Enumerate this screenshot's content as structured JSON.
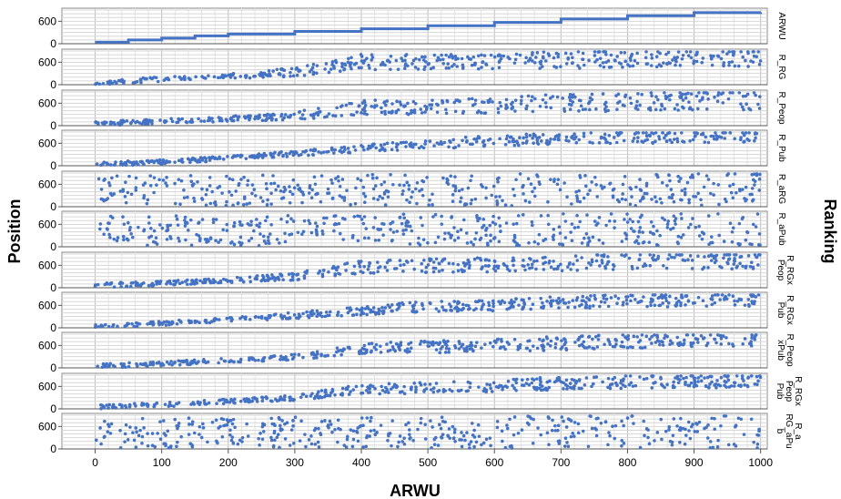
{
  "chart_data": {
    "type": "scatter",
    "title": "",
    "xlabel": "ARWU",
    "ylabel_left": "Position",
    "ylabel_right": "Ranking",
    "xlim": [
      -50,
      1010
    ],
    "ylim": [
      0,
      950
    ],
    "x_ticks": [
      0,
      100,
      200,
      300,
      400,
      500,
      600,
      700,
      800,
      900,
      1000
    ],
    "y_ticks": [
      0,
      600
    ],
    "grid": true,
    "point_color": "#4472c4",
    "panels": [
      {
        "name": "ARWU",
        "kind": "step",
        "steps": [
          [
            0,
            40
          ],
          [
            50,
            100
          ],
          [
            100,
            150
          ],
          [
            150,
            210
          ],
          [
            200,
            260
          ],
          [
            300,
            330
          ],
          [
            400,
            400
          ],
          [
            500,
            480
          ],
          [
            600,
            570
          ],
          [
            700,
            660
          ],
          [
            800,
            750
          ],
          [
            900,
            830
          ],
          [
            1000,
            840
          ]
        ]
      },
      {
        "name": "R_RG",
        "kind": "scatter",
        "profile": [
          [
            0,
            50
          ],
          [
            100,
            150
          ],
          [
            200,
            230
          ],
          [
            300,
            330
          ],
          [
            400,
            600
          ],
          [
            500,
            600
          ],
          [
            600,
            620
          ],
          [
            700,
            660
          ],
          [
            800,
            700
          ],
          [
            900,
            730
          ],
          [
            1000,
            730
          ]
        ],
        "spread": 0.35,
        "seed": 11,
        "n": 430
      },
      {
        "name": "R_Peop",
        "kind": "scatter",
        "profile": [
          [
            0,
            50
          ],
          [
            100,
            120
          ],
          [
            200,
            180
          ],
          [
            300,
            260
          ],
          [
            400,
            500
          ],
          [
            500,
            480
          ],
          [
            600,
            560
          ],
          [
            700,
            600
          ],
          [
            800,
            640
          ],
          [
            900,
            700
          ],
          [
            1000,
            700
          ]
        ],
        "spread": 0.4,
        "seed": 23,
        "n": 430
      },
      {
        "name": "R_Pub",
        "kind": "scatter",
        "profile": [
          [
            0,
            50
          ],
          [
            100,
            100
          ],
          [
            200,
            200
          ],
          [
            300,
            330
          ],
          [
            400,
            460
          ],
          [
            500,
            560
          ],
          [
            600,
            680
          ],
          [
            700,
            720
          ],
          [
            800,
            760
          ],
          [
            900,
            790
          ],
          [
            1000,
            800
          ]
        ],
        "spread": 0.22,
        "seed": 37,
        "n": 430
      },
      {
        "name": "R_aRG",
        "kind": "scatter",
        "profile": [
          [
            0,
            420
          ],
          [
            1000,
            470
          ]
        ],
        "spread": 0.95,
        "seed": 41,
        "n": 420
      },
      {
        "name": "R_aPub",
        "kind": "scatter",
        "profile": [
          [
            0,
            420
          ],
          [
            1000,
            480
          ]
        ],
        "spread": 0.95,
        "seed": 53,
        "n": 420
      },
      {
        "name": "R_RGx Peop",
        "kind": "scatter",
        "profile": [
          [
            0,
            60
          ],
          [
            100,
            120
          ],
          [
            200,
            200
          ],
          [
            300,
            300
          ],
          [
            400,
            560
          ],
          [
            500,
            600
          ],
          [
            600,
            620
          ],
          [
            700,
            660
          ],
          [
            800,
            700
          ],
          [
            900,
            730
          ],
          [
            1000,
            730
          ]
        ],
        "spread": 0.32,
        "seed": 67,
        "n": 430
      },
      {
        "name": "R_RGx Pub",
        "kind": "scatter",
        "profile": [
          [
            0,
            50
          ],
          [
            100,
            120
          ],
          [
            200,
            220
          ],
          [
            300,
            330
          ],
          [
            400,
            460
          ],
          [
            500,
            580
          ],
          [
            600,
            600
          ],
          [
            700,
            680
          ],
          [
            800,
            720
          ],
          [
            900,
            760
          ],
          [
            1000,
            770
          ]
        ],
        "spread": 0.25,
        "seed": 71,
        "n": 430
      },
      {
        "name": "R_Peop xPub",
        "kind": "scatter",
        "profile": [
          [
            0,
            50
          ],
          [
            100,
            110
          ],
          [
            200,
            200
          ],
          [
            300,
            300
          ],
          [
            400,
            520
          ],
          [
            500,
            560
          ],
          [
            600,
            600
          ],
          [
            700,
            660
          ],
          [
            800,
            720
          ],
          [
            900,
            760
          ],
          [
            1000,
            760
          ]
        ],
        "spread": 0.28,
        "seed": 83,
        "n": 430
      },
      {
        "name": "R_RGx Peop Pub",
        "kind": "scatter",
        "profile": [
          [
            0,
            50
          ],
          [
            100,
            110
          ],
          [
            200,
            200
          ],
          [
            300,
            300
          ],
          [
            400,
            520
          ],
          [
            500,
            560
          ],
          [
            600,
            620
          ],
          [
            700,
            680
          ],
          [
            800,
            730
          ],
          [
            900,
            760
          ],
          [
            1000,
            760
          ]
        ],
        "spread": 0.26,
        "seed": 97,
        "n": 430
      },
      {
        "name": "R_a RG_aPu b",
        "kind": "scatter",
        "profile": [
          [
            0,
            420
          ],
          [
            1000,
            470
          ]
        ],
        "spread": 0.95,
        "seed": 101,
        "n": 420
      }
    ]
  }
}
